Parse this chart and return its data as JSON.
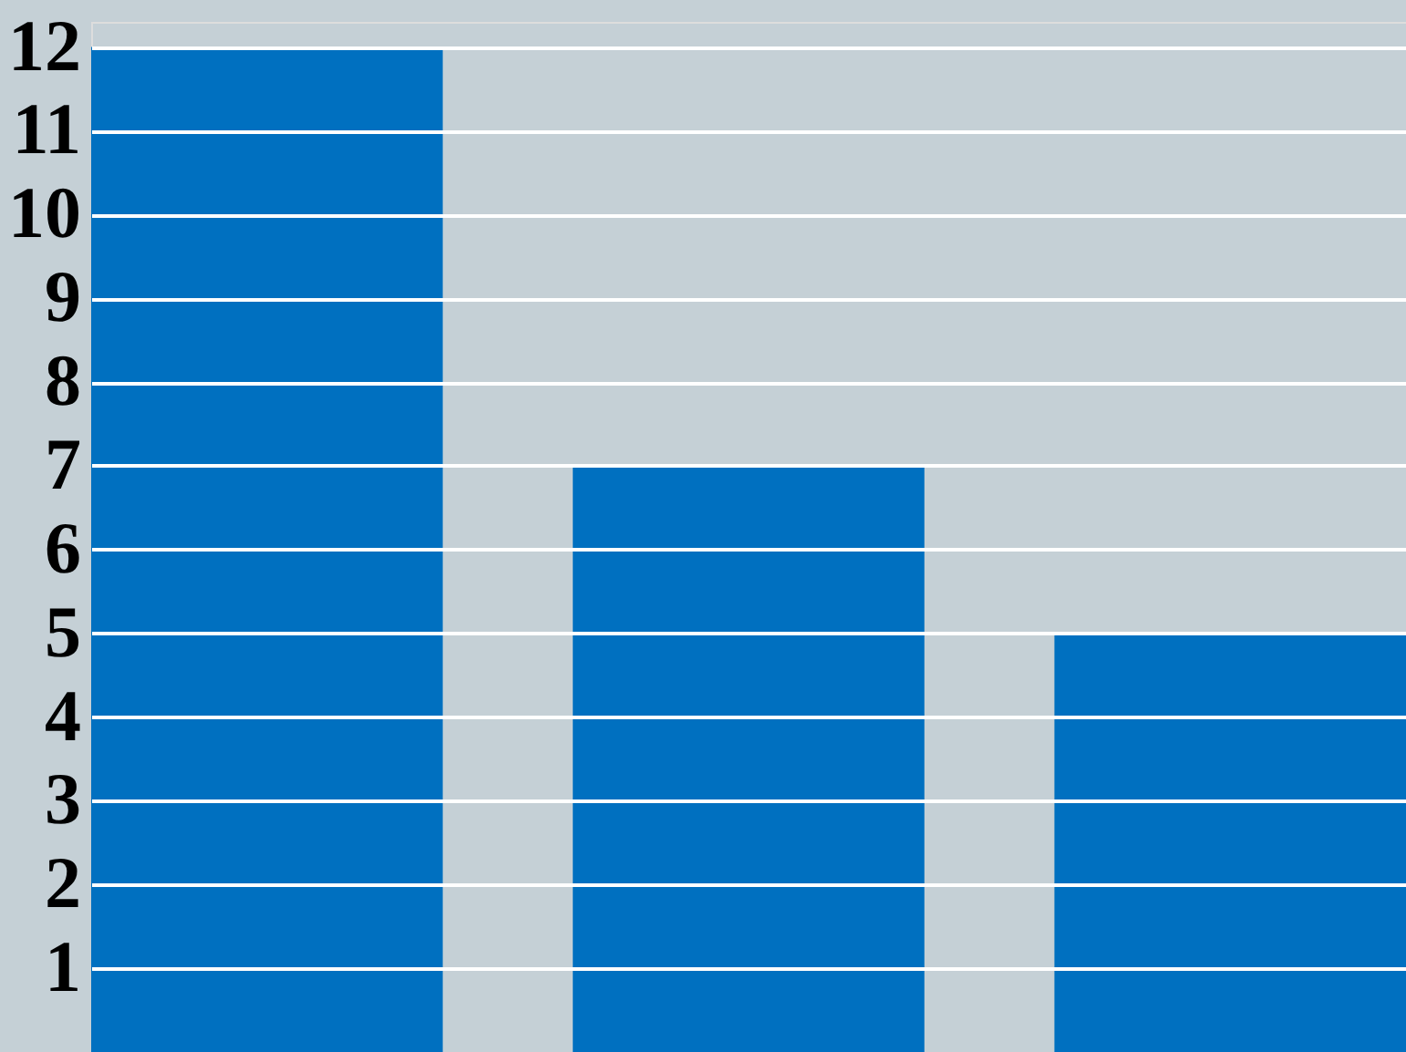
{
  "chart_data": {
    "type": "bar",
    "categories": [
      null,
      null,
      null
    ],
    "values": [
      12,
      7,
      5
    ],
    "color": "#0070c0",
    "ylim": [
      0,
      12.3
    ],
    "yticks": [
      1,
      2,
      3,
      4,
      5,
      6,
      7,
      8,
      9,
      10,
      11,
      12
    ],
    "grid": "y",
    "tick_labels": "y"
  }
}
